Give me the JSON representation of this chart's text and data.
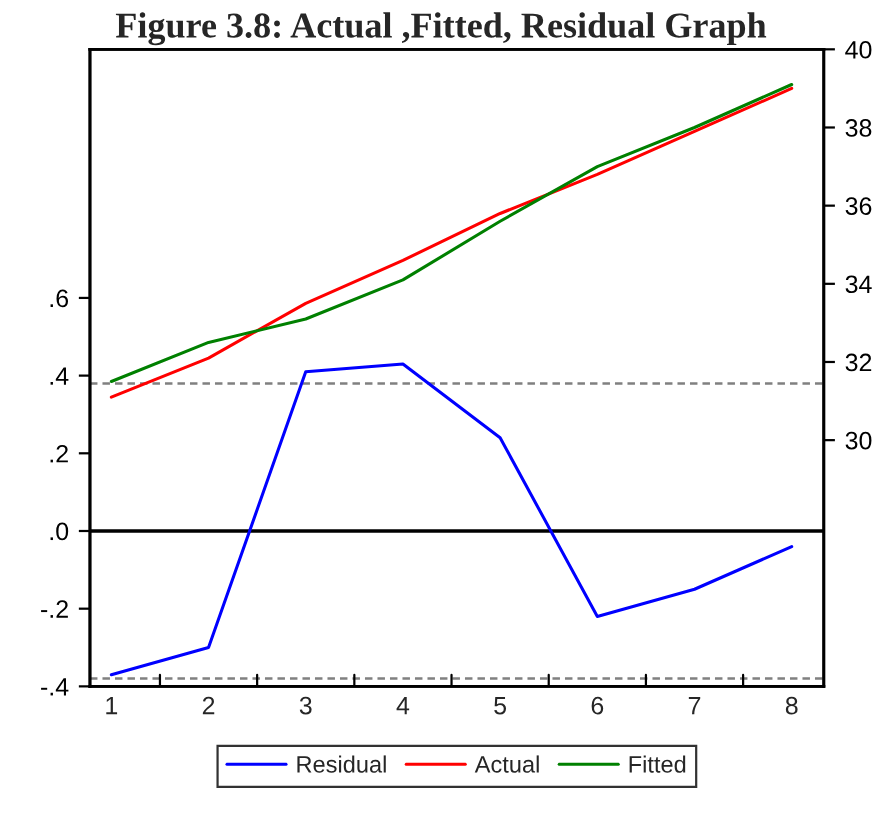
{
  "chart_data": {
    "type": "line",
    "title": "Figure 3.8: Actual ,Fitted, Residual Graph",
    "categories": [
      "1",
      "2",
      "3",
      "4",
      "5",
      "6",
      "7",
      "8"
    ],
    "series": [
      {
        "name": "Residual",
        "color": "#0000ff",
        "values": [
          -0.37,
          -0.3,
          0.41,
          0.43,
          0.24,
          -0.22,
          -0.15,
          -0.04
        ]
      },
      {
        "name": "Actual",
        "color": "#ff0000",
        "axis": "y2",
        "values": [
          31.1,
          32.1,
          33.5,
          34.6,
          35.8,
          36.8,
          37.9,
          39.0
        ]
      },
      {
        "name": "Fitted",
        "color": "#008000",
        "axis": "y2",
        "values": [
          31.5,
          32.5,
          33.1,
          34.1,
          35.6,
          37.0,
          38.0,
          39.1
        ]
      }
    ],
    "ylim": [
      -0.4,
      1.24
    ],
    "yticks": [
      {
        "value": -0.4,
        "label": "-.4"
      },
      {
        "value": -0.2,
        "label": "-.2"
      },
      {
        "value": 0,
        "label": ".0"
      },
      {
        "value": 0.2,
        "label": ".2"
      },
      {
        "value": 0.4,
        "label": ".4"
      },
      {
        "value": 0.6,
        "label": ".6"
      }
    ],
    "y2lim": [
      23.7,
      40
    ],
    "y2ticks": [
      30,
      32,
      34,
      36,
      38,
      40
    ],
    "ref_lines": [
      {
        "axis": "y",
        "value": 0,
        "color": "#000000",
        "line_style": "solid"
      },
      {
        "axis": "y",
        "value": 0.38,
        "color": "#808080",
        "line_style": "dashed"
      },
      {
        "axis": "y",
        "value": -0.38,
        "color": "#808080",
        "line_style": "dashed"
      }
    ],
    "grid": false,
    "legend": "bottom",
    "marker": "none",
    "line_style": "solid"
  }
}
